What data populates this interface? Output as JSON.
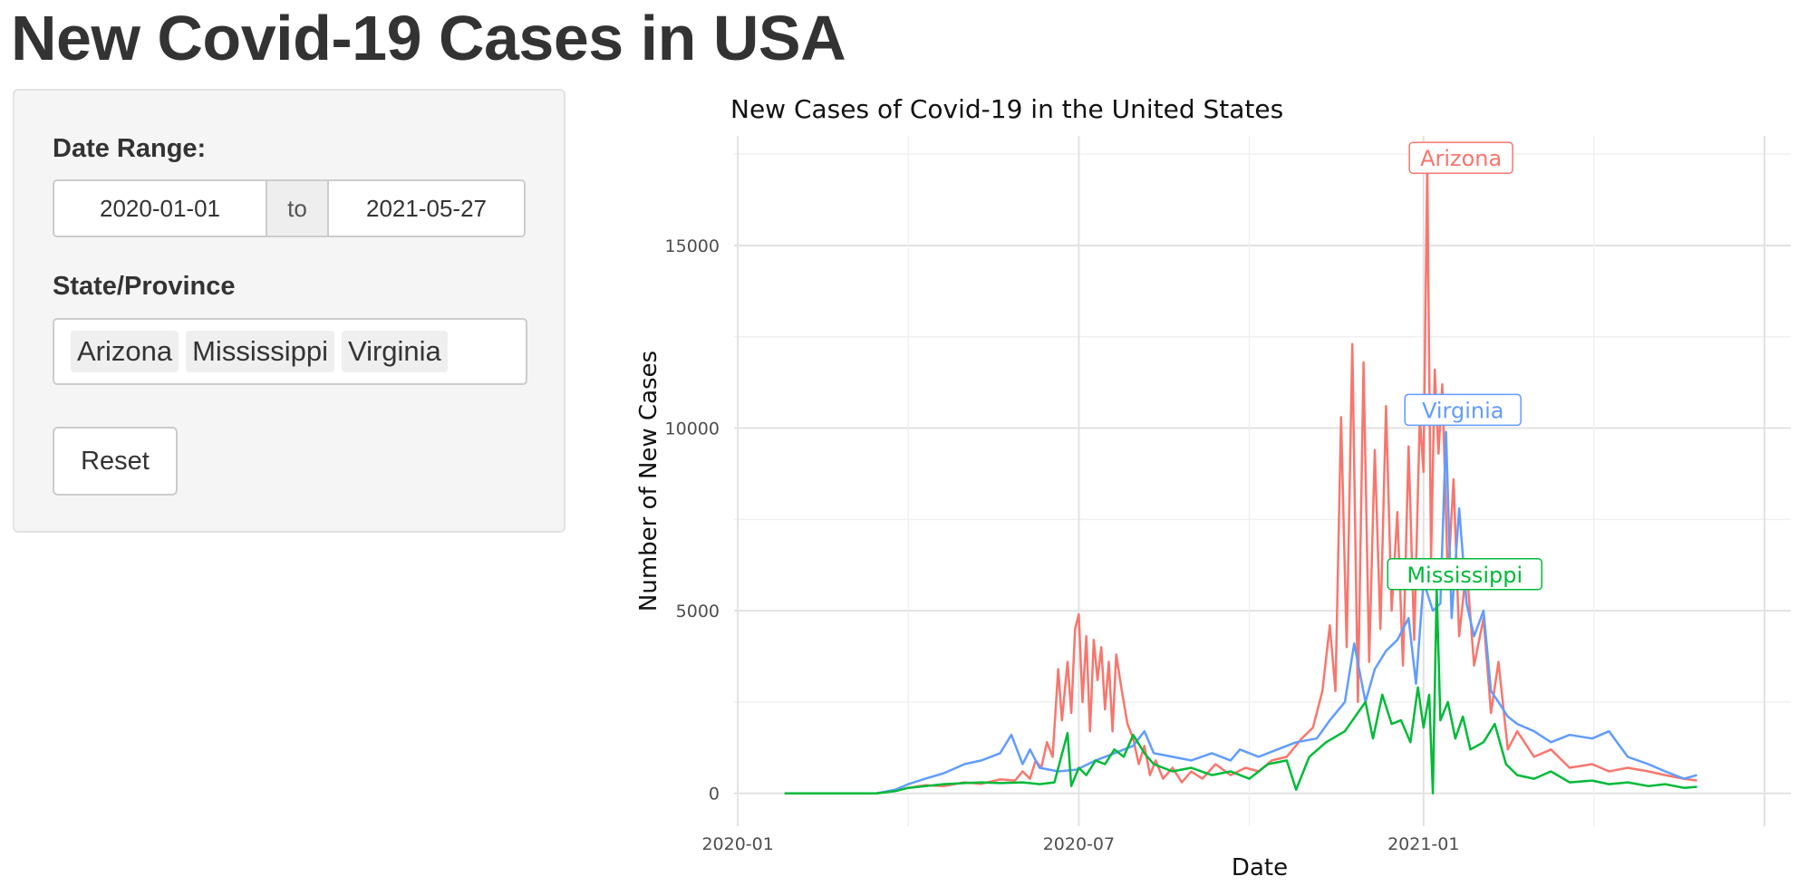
{
  "page": {
    "title": "New Covid-19 Cases in USA"
  },
  "sidebar": {
    "date_range_label": "Date Range:",
    "date_start": "2020-01-01",
    "date_separator": "to",
    "date_end": "2021-05-27",
    "state_label": "State/Province",
    "selected_states": [
      "Arizona",
      "Mississippi",
      "Virginia"
    ],
    "reset_label": "Reset"
  },
  "chart_data": {
    "type": "line",
    "title": "New Cases of Covid-19 in the United States",
    "xlabel": "Date",
    "ylabel": "Number of New Cases",
    "x_range": [
      "2020-01-01",
      "2021-05-27"
    ],
    "ylim": [
      -900,
      18000
    ],
    "y_ticks": [
      0,
      5000,
      10000,
      15000
    ],
    "x_ticks": [
      "2020-01-01",
      "2020-07-01",
      "2021-01-01"
    ],
    "x_tick_labels": [
      "2020-01",
      "2020-07",
      "2021-01"
    ],
    "grid": true,
    "legend": "direct labels on lines",
    "series": [
      {
        "name": "Arizona",
        "color": "#F8766D",
        "label_position": {
          "date": "2021-01-21",
          "value": 17400
        },
        "points": [
          [
            "2020-01-26",
            0
          ],
          [
            "2020-03-01",
            0
          ],
          [
            "2020-03-15",
            0
          ],
          [
            "2020-03-25",
            80
          ],
          [
            "2020-04-01",
            150
          ],
          [
            "2020-04-10",
            220
          ],
          [
            "2020-04-20",
            200
          ],
          [
            "2020-05-01",
            300
          ],
          [
            "2020-05-10",
            260
          ],
          [
            "2020-05-20",
            380
          ],
          [
            "2020-05-28",
            350
          ],
          [
            "2020-06-01",
            600
          ],
          [
            "2020-06-05",
            400
          ],
          [
            "2020-06-08",
            900
          ],
          [
            "2020-06-11",
            700
          ],
          [
            "2020-06-14",
            1400
          ],
          [
            "2020-06-17",
            1000
          ],
          [
            "2020-06-20",
            3400
          ],
          [
            "2020-06-22",
            2000
          ],
          [
            "2020-06-25",
            3600
          ],
          [
            "2020-06-27",
            2200
          ],
          [
            "2020-06-29",
            4500
          ],
          [
            "2020-07-01",
            4900
          ],
          [
            "2020-07-03",
            2500
          ],
          [
            "2020-07-05",
            4300
          ],
          [
            "2020-07-07",
            1700
          ],
          [
            "2020-07-09",
            4200
          ],
          [
            "2020-07-11",
            3100
          ],
          [
            "2020-07-13",
            4000
          ],
          [
            "2020-07-15",
            2300
          ],
          [
            "2020-07-17",
            3600
          ],
          [
            "2020-07-19",
            1700
          ],
          [
            "2020-07-21",
            3800
          ],
          [
            "2020-07-24",
            2800
          ],
          [
            "2020-07-27",
            1900
          ],
          [
            "2020-07-30",
            1500
          ],
          [
            "2020-08-02",
            800
          ],
          [
            "2020-08-05",
            1300
          ],
          [
            "2020-08-08",
            500
          ],
          [
            "2020-08-11",
            900
          ],
          [
            "2020-08-15",
            400
          ],
          [
            "2020-08-20",
            700
          ],
          [
            "2020-08-25",
            300
          ],
          [
            "2020-08-30",
            600
          ],
          [
            "2020-09-05",
            400
          ],
          [
            "2020-09-12",
            800
          ],
          [
            "2020-09-20",
            500
          ],
          [
            "2020-09-28",
            700
          ],
          [
            "2020-10-05",
            600
          ],
          [
            "2020-10-12",
            900
          ],
          [
            "2020-10-20",
            1000
          ],
          [
            "2020-10-28",
            1500
          ],
          [
            "2020-11-03",
            1800
          ],
          [
            "2020-11-08",
            2800
          ],
          [
            "2020-11-12",
            4600
          ],
          [
            "2020-11-15",
            2800
          ],
          [
            "2020-11-18",
            10300
          ],
          [
            "2020-11-21",
            4000
          ],
          [
            "2020-11-24",
            12300
          ],
          [
            "2020-11-27",
            2500
          ],
          [
            "2020-11-30",
            11800
          ],
          [
            "2020-12-03",
            3600
          ],
          [
            "2020-12-06",
            9400
          ],
          [
            "2020-12-09",
            4500
          ],
          [
            "2020-12-12",
            10600
          ],
          [
            "2020-12-15",
            5000
          ],
          [
            "2020-12-18",
            7700
          ],
          [
            "2020-12-21",
            3500
          ],
          [
            "2020-12-24",
            9500
          ],
          [
            "2020-12-27",
            4200
          ],
          [
            "2020-12-30",
            10300
          ],
          [
            "2021-01-01",
            8800
          ],
          [
            "2021-01-03",
            17200
          ],
          [
            "2021-01-05",
            6400
          ],
          [
            "2021-01-07",
            11600
          ],
          [
            "2021-01-09",
            9300
          ],
          [
            "2021-01-11",
            11200
          ],
          [
            "2021-01-14",
            5800
          ],
          [
            "2021-01-17",
            8600
          ],
          [
            "2021-01-20",
            4300
          ],
          [
            "2021-01-24",
            6200
          ],
          [
            "2021-01-28",
            3500
          ],
          [
            "2021-02-02",
            4800
          ],
          [
            "2021-02-06",
            2200
          ],
          [
            "2021-02-10",
            3600
          ],
          [
            "2021-02-15",
            1200
          ],
          [
            "2021-02-20",
            1700
          ],
          [
            "2021-03-01",
            1000
          ],
          [
            "2021-03-10",
            1200
          ],
          [
            "2021-03-20",
            700
          ],
          [
            "2021-04-01",
            800
          ],
          [
            "2021-04-10",
            600
          ],
          [
            "2021-04-20",
            700
          ],
          [
            "2021-05-01",
            600
          ],
          [
            "2021-05-10",
            500
          ],
          [
            "2021-05-20",
            400
          ],
          [
            "2021-05-27",
            350
          ]
        ]
      },
      {
        "name": "Virginia",
        "color": "#619CFF",
        "label_position": {
          "date": "2021-01-22",
          "value": 10500
        },
        "points": [
          [
            "2020-01-26",
            0
          ],
          [
            "2020-03-01",
            0
          ],
          [
            "2020-03-15",
            0
          ],
          [
            "2020-03-25",
            100
          ],
          [
            "2020-04-01",
            250
          ],
          [
            "2020-04-10",
            400
          ],
          [
            "2020-04-20",
            550
          ],
          [
            "2020-05-01",
            800
          ],
          [
            "2020-05-10",
            900
          ],
          [
            "2020-05-20",
            1100
          ],
          [
            "2020-05-26",
            1600
          ],
          [
            "2020-06-01",
            800
          ],
          [
            "2020-06-05",
            1200
          ],
          [
            "2020-06-10",
            700
          ],
          [
            "2020-06-20",
            600
          ],
          [
            "2020-06-30",
            650
          ],
          [
            "2020-07-10",
            900
          ],
          [
            "2020-07-20",
            1100
          ],
          [
            "2020-07-30",
            1300
          ],
          [
            "2020-08-05",
            1700
          ],
          [
            "2020-08-10",
            1100
          ],
          [
            "2020-08-20",
            1000
          ],
          [
            "2020-08-30",
            900
          ],
          [
            "2020-09-10",
            1100
          ],
          [
            "2020-09-20",
            900
          ],
          [
            "2020-09-25",
            1200
          ],
          [
            "2020-10-05",
            1000
          ],
          [
            "2020-10-15",
            1200
          ],
          [
            "2020-10-25",
            1400
          ],
          [
            "2020-11-05",
            1500
          ],
          [
            "2020-11-12",
            2000
          ],
          [
            "2020-11-20",
            2500
          ],
          [
            "2020-11-25",
            4100
          ],
          [
            "2020-12-01",
            2500
          ],
          [
            "2020-12-06",
            3400
          ],
          [
            "2020-12-12",
            3900
          ],
          [
            "2020-12-18",
            4200
          ],
          [
            "2020-12-24",
            4800
          ],
          [
            "2020-12-28",
            3000
          ],
          [
            "2021-01-01",
            5800
          ],
          [
            "2021-01-06",
            5000
          ],
          [
            "2021-01-10",
            5200
          ],
          [
            "2021-01-13",
            9900
          ],
          [
            "2021-01-16",
            4800
          ],
          [
            "2021-01-20",
            7800
          ],
          [
            "2021-01-24",
            5200
          ],
          [
            "2021-01-28",
            4300
          ],
          [
            "2021-02-02",
            5000
          ],
          [
            "2021-02-06",
            2800
          ],
          [
            "2021-02-10",
            2500
          ],
          [
            "2021-02-15",
            2100
          ],
          [
            "2021-02-20",
            1900
          ],
          [
            "2021-03-01",
            1700
          ],
          [
            "2021-03-10",
            1400
          ],
          [
            "2021-03-20",
            1600
          ],
          [
            "2021-04-01",
            1500
          ],
          [
            "2021-04-10",
            1700
          ],
          [
            "2021-04-20",
            1000
          ],
          [
            "2021-05-01",
            800
          ],
          [
            "2021-05-10",
            600
          ],
          [
            "2021-05-20",
            400
          ],
          [
            "2021-05-27",
            500
          ]
        ]
      },
      {
        "name": "Mississippi",
        "color": "#00BA38",
        "label_position": {
          "date": "2021-01-23",
          "value": 6000
        },
        "points": [
          [
            "2020-01-26",
            0
          ],
          [
            "2020-03-01",
            0
          ],
          [
            "2020-03-15",
            0
          ],
          [
            "2020-03-25",
            60
          ],
          [
            "2020-04-01",
            150
          ],
          [
            "2020-04-10",
            200
          ],
          [
            "2020-04-20",
            250
          ],
          [
            "2020-05-01",
            280
          ],
          [
            "2020-05-10",
            300
          ],
          [
            "2020-05-20",
            280
          ],
          [
            "2020-06-01",
            300
          ],
          [
            "2020-06-10",
            250
          ],
          [
            "2020-06-18",
            300
          ],
          [
            "2020-06-25",
            1650
          ],
          [
            "2020-06-27",
            200
          ],
          [
            "2020-07-01",
            700
          ],
          [
            "2020-07-05",
            500
          ],
          [
            "2020-07-10",
            900
          ],
          [
            "2020-07-15",
            800
          ],
          [
            "2020-07-20",
            1200
          ],
          [
            "2020-07-25",
            1000
          ],
          [
            "2020-07-30",
            1600
          ],
          [
            "2020-08-05",
            1100
          ],
          [
            "2020-08-10",
            800
          ],
          [
            "2020-08-20",
            600
          ],
          [
            "2020-08-30",
            700
          ],
          [
            "2020-09-10",
            500
          ],
          [
            "2020-09-20",
            600
          ],
          [
            "2020-09-30",
            400
          ],
          [
            "2020-10-10",
            800
          ],
          [
            "2020-10-20",
            900
          ],
          [
            "2020-10-25",
            100
          ],
          [
            "2020-11-01",
            1000
          ],
          [
            "2020-11-10",
            1400
          ],
          [
            "2020-11-20",
            1700
          ],
          [
            "2020-12-01",
            2500
          ],
          [
            "2020-12-05",
            1500
          ],
          [
            "2020-12-10",
            2700
          ],
          [
            "2020-12-15",
            1900
          ],
          [
            "2020-12-20",
            2000
          ],
          [
            "2020-12-25",
            1400
          ],
          [
            "2020-12-29",
            2900
          ],
          [
            "2021-01-01",
            1800
          ],
          [
            "2021-01-04",
            2700
          ],
          [
            "2021-01-06",
            0
          ],
          [
            "2021-01-08",
            5600
          ],
          [
            "2021-01-10",
            2000
          ],
          [
            "2021-01-14",
            2500
          ],
          [
            "2021-01-18",
            1500
          ],
          [
            "2021-01-22",
            2100
          ],
          [
            "2021-01-26",
            1200
          ],
          [
            "2021-02-02",
            1400
          ],
          [
            "2021-02-08",
            1900
          ],
          [
            "2021-02-14",
            800
          ],
          [
            "2021-02-20",
            500
          ],
          [
            "2021-03-01",
            400
          ],
          [
            "2021-03-10",
            600
          ],
          [
            "2021-03-20",
            300
          ],
          [
            "2021-04-01",
            350
          ],
          [
            "2021-04-10",
            250
          ],
          [
            "2021-04-20",
            300
          ],
          [
            "2021-05-01",
            200
          ],
          [
            "2021-05-10",
            250
          ],
          [
            "2021-05-20",
            150
          ],
          [
            "2021-05-27",
            180
          ]
        ]
      }
    ]
  }
}
